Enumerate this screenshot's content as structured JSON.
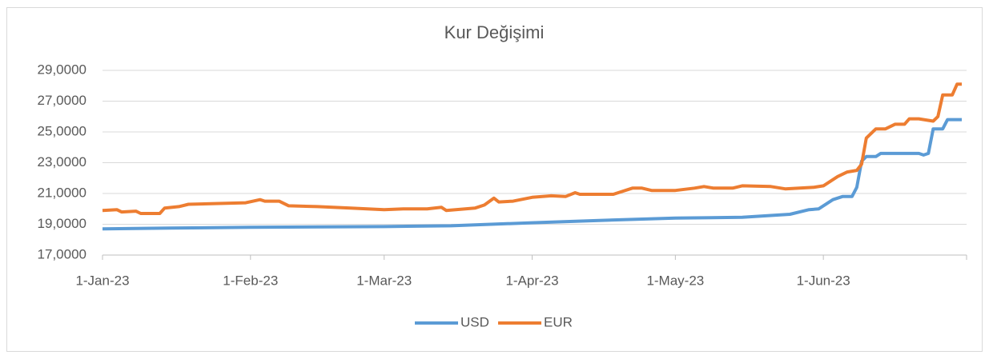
{
  "chart_data": {
    "type": "line",
    "title": "Kur Değişimi",
    "xlim": [
      "2023-01-01",
      "2023-07-01"
    ],
    "xticks": [
      {
        "value": "2023-01-01",
        "label": "1-Jan-23"
      },
      {
        "value": "2023-02-01",
        "label": "1-Feb-23"
      },
      {
        "value": "2023-03-01",
        "label": "1-Mar-23"
      },
      {
        "value": "2023-04-01",
        "label": "1-Apr-23"
      },
      {
        "value": "2023-05-01",
        "label": "1-May-23"
      },
      {
        "value": "2023-06-01",
        "label": "1-Jun-23"
      }
    ],
    "ylim": [
      17,
      29
    ],
    "yticks": [
      {
        "value": 17,
        "label": "17,0000"
      },
      {
        "value": 19,
        "label": "19,0000"
      },
      {
        "value": 21,
        "label": "21,0000"
      },
      {
        "value": 23,
        "label": "23,0000"
      },
      {
        "value": 25,
        "label": "25,0000"
      },
      {
        "value": 27,
        "label": "27,0000"
      },
      {
        "value": 29,
        "label": "29,0000"
      }
    ],
    "grid": true,
    "legend": "bottom",
    "series": [
      {
        "name": "USD",
        "color": "#5b9bd5",
        "x": [
          "2023-01-01",
          "2023-01-15",
          "2023-02-01",
          "2023-03-01",
          "2023-03-15",
          "2023-04-01",
          "2023-04-15",
          "2023-05-01",
          "2023-05-15",
          "2023-05-25",
          "2023-05-29",
          "2023-05-31",
          "2023-06-03",
          "2023-06-05",
          "2023-06-06",
          "2023-06-07",
          "2023-06-08",
          "2023-06-09",
          "2023-06-10",
          "2023-06-12",
          "2023-06-13",
          "2023-06-21",
          "2023-06-22",
          "2023-06-23",
          "2023-06-24",
          "2023-06-26",
          "2023-06-27",
          "2023-06-30"
        ],
        "values": [
          18.7,
          18.75,
          18.8,
          18.85,
          18.9,
          19.1,
          19.25,
          19.4,
          19.45,
          19.65,
          19.95,
          20.0,
          20.6,
          20.8,
          20.8,
          20.8,
          21.4,
          23.1,
          23.4,
          23.4,
          23.6,
          23.6,
          23.5,
          23.6,
          25.2,
          25.2,
          25.8,
          25.8
        ]
      },
      {
        "name": "EUR",
        "color": "#ed7d31",
        "x": [
          "2023-01-01",
          "2023-01-04",
          "2023-01-05",
          "2023-01-08",
          "2023-01-09",
          "2023-01-13",
          "2023-01-14",
          "2023-01-17",
          "2023-01-19",
          "2023-01-31",
          "2023-02-03",
          "2023-02-04",
          "2023-02-07",
          "2023-02-09",
          "2023-02-15",
          "2023-02-22",
          "2023-03-01",
          "2023-03-05",
          "2023-03-10",
          "2023-03-13",
          "2023-03-14",
          "2023-03-20",
          "2023-03-22",
          "2023-03-24",
          "2023-03-25",
          "2023-03-28",
          "2023-04-01",
          "2023-04-05",
          "2023-04-08",
          "2023-04-10",
          "2023-04-11",
          "2023-04-18",
          "2023-04-22",
          "2023-04-24",
          "2023-04-26",
          "2023-05-01",
          "2023-05-05",
          "2023-05-07",
          "2023-05-09",
          "2023-05-13",
          "2023-05-15",
          "2023-05-21",
          "2023-05-24",
          "2023-05-30",
          "2023-06-01",
          "2023-06-04",
          "2023-06-06",
          "2023-06-08",
          "2023-06-09",
          "2023-06-10",
          "2023-06-12",
          "2023-06-14",
          "2023-06-16",
          "2023-06-18",
          "2023-06-19",
          "2023-06-21",
          "2023-06-24",
          "2023-06-25",
          "2023-06-26",
          "2023-06-28",
          "2023-06-29",
          "2023-06-30"
        ],
        "values": [
          19.9,
          19.95,
          19.8,
          19.85,
          19.7,
          19.7,
          20.05,
          20.15,
          20.3,
          20.4,
          20.6,
          20.5,
          20.5,
          20.2,
          20.15,
          20.05,
          19.95,
          20.0,
          20.0,
          20.1,
          19.9,
          20.05,
          20.25,
          20.7,
          20.45,
          20.5,
          20.75,
          20.85,
          20.8,
          21.05,
          20.95,
          20.95,
          21.35,
          21.35,
          21.2,
          21.2,
          21.35,
          21.45,
          21.35,
          21.35,
          21.5,
          21.45,
          21.3,
          21.4,
          21.5,
          22.1,
          22.4,
          22.5,
          22.9,
          24.6,
          25.2,
          25.2,
          25.5,
          25.5,
          25.85,
          25.85,
          25.7,
          26.0,
          27.4,
          27.4,
          28.1,
          28.1
        ]
      }
    ]
  }
}
